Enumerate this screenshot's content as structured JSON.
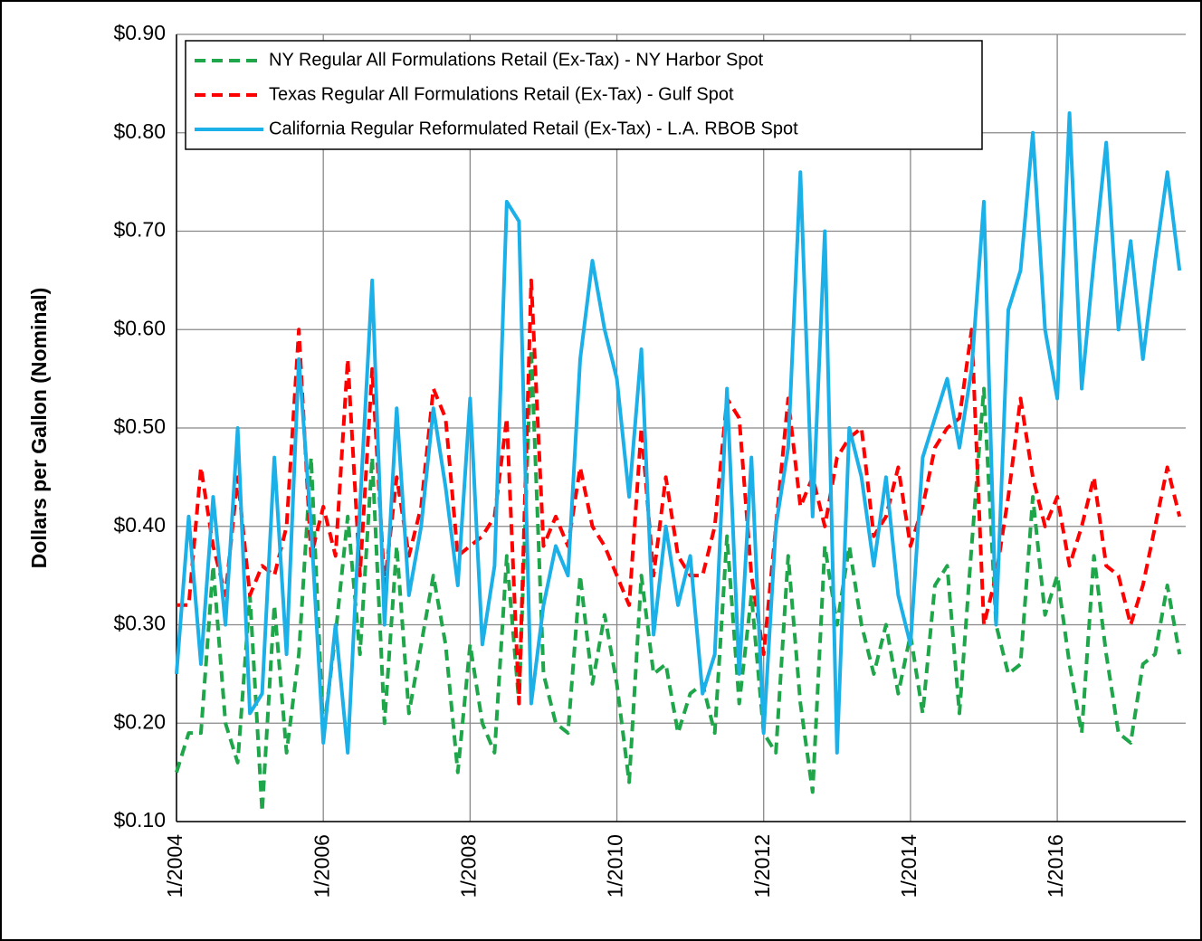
{
  "chart_data": {
    "type": "line",
    "y_label": "Dollars per Gallon (Nominal)",
    "x": [
      "1/2004",
      "3/2004",
      "5/2004",
      "7/2004",
      "9/2004",
      "11/2004",
      "1/2005",
      "3/2005",
      "5/2005",
      "7/2005",
      "9/2005",
      "11/2005",
      "1/2006",
      "3/2006",
      "5/2006",
      "7/2006",
      "9/2006",
      "11/2006",
      "1/2007",
      "3/2007",
      "5/2007",
      "7/2007",
      "9/2007",
      "11/2007",
      "1/2008",
      "3/2008",
      "5/2008",
      "7/2008",
      "9/2008",
      "11/2008",
      "1/2009",
      "3/2009",
      "5/2009",
      "7/2009",
      "9/2009",
      "11/2009",
      "1/2010",
      "3/2010",
      "5/2010",
      "7/2010",
      "9/2010",
      "11/2010",
      "1/2011",
      "3/2011",
      "5/2011",
      "7/2011",
      "9/2011",
      "11/2011",
      "1/2012",
      "3/2012",
      "5/2012",
      "7/2012",
      "9/2012",
      "11/2012",
      "1/2013",
      "3/2013",
      "5/2013",
      "7/2013",
      "9/2013",
      "11/2013",
      "1/2014",
      "3/2014",
      "5/2014",
      "7/2014",
      "9/2014",
      "11/2014",
      "1/2015",
      "3/2015",
      "5/2015",
      "7/2015",
      "9/2015",
      "11/2015",
      "1/2016",
      "3/2016",
      "5/2016",
      "7/2016",
      "9/2016",
      "11/2016",
      "1/2017",
      "3/2017",
      "5/2017",
      "7/2017",
      "9/2017"
    ],
    "series": [
      {
        "name": "NY Regular All Formulations Retail (Ex-Tax) - NY Harbor Spot",
        "color": "#1fa64a",
        "dashed": true,
        "values": [
          0.15,
          0.19,
          0.19,
          0.36,
          0.2,
          0.16,
          0.33,
          0.11,
          0.32,
          0.17,
          0.27,
          0.47,
          0.19,
          0.29,
          0.41,
          0.27,
          0.47,
          0.2,
          0.38,
          0.21,
          0.28,
          0.35,
          0.28,
          0.15,
          0.28,
          0.2,
          0.17,
          0.37,
          0.22,
          0.58,
          0.25,
          0.2,
          0.19,
          0.35,
          0.24,
          0.31,
          0.24,
          0.14,
          0.35,
          0.25,
          0.26,
          0.19,
          0.23,
          0.24,
          0.19,
          0.39,
          0.22,
          0.33,
          0.19,
          0.17,
          0.37,
          0.22,
          0.13,
          0.38,
          0.3,
          0.38,
          0.3,
          0.25,
          0.3,
          0.23,
          0.29,
          0.21,
          0.34,
          0.36,
          0.21,
          0.38,
          0.54,
          0.3,
          0.25,
          0.26,
          0.43,
          0.31,
          0.35,
          0.26,
          0.19,
          0.37,
          0.27,
          0.19,
          0.18,
          0.26,
          0.27,
          0.34,
          0.27
        ]
      },
      {
        "name": "Texas Regular All Formulations Retail (Ex-Tax) - Gulf Spot",
        "color": "#ff0000",
        "dashed": true,
        "values": [
          0.32,
          0.32,
          0.46,
          0.38,
          0.33,
          0.45,
          0.33,
          0.36,
          0.35,
          0.4,
          0.6,
          0.37,
          0.42,
          0.37,
          0.57,
          0.35,
          0.56,
          0.34,
          0.45,
          0.37,
          0.42,
          0.54,
          0.51,
          0.37,
          0.38,
          0.39,
          0.41,
          0.51,
          0.22,
          0.65,
          0.38,
          0.41,
          0.38,
          0.46,
          0.4,
          0.38,
          0.35,
          0.32,
          0.5,
          0.35,
          0.45,
          0.37,
          0.35,
          0.35,
          0.4,
          0.53,
          0.51,
          0.35,
          0.27,
          0.4,
          0.53,
          0.42,
          0.45,
          0.4,
          0.47,
          0.49,
          0.5,
          0.39,
          0.41,
          0.46,
          0.38,
          0.42,
          0.48,
          0.5,
          0.51,
          0.6,
          0.3,
          0.35,
          0.43,
          0.53,
          0.45,
          0.4,
          0.43,
          0.36,
          0.4,
          0.45,
          0.36,
          0.35,
          0.3,
          0.34,
          0.4,
          0.46,
          0.41
        ]
      },
      {
        "name": "California Regular Reformulated Retail (Ex-Tax) - L.A. RBOB Spot",
        "color": "#1cb0e8",
        "dashed": false,
        "values": [
          0.25,
          0.41,
          0.26,
          0.43,
          0.3,
          0.5,
          0.21,
          0.23,
          0.47,
          0.27,
          0.57,
          0.4,
          0.18,
          0.3,
          0.17,
          0.42,
          0.65,
          0.3,
          0.52,
          0.33,
          0.4,
          0.52,
          0.44,
          0.34,
          0.53,
          0.28,
          0.36,
          0.73,
          0.71,
          0.22,
          0.32,
          0.38,
          0.35,
          0.57,
          0.67,
          0.6,
          0.55,
          0.43,
          0.58,
          0.29,
          0.4,
          0.32,
          0.37,
          0.23,
          0.27,
          0.54,
          0.25,
          0.47,
          0.19,
          0.4,
          0.48,
          0.76,
          0.41,
          0.7,
          0.17,
          0.5,
          0.45,
          0.36,
          0.45,
          0.33,
          0.28,
          0.47,
          0.51,
          0.55,
          0.48,
          0.56,
          0.73,
          0.3,
          0.62,
          0.66,
          0.8,
          0.6,
          0.53,
          0.82,
          0.54,
          0.67,
          0.79,
          0.6,
          0.69,
          0.57,
          0.67,
          0.76,
          0.66
        ]
      }
    ],
    "xlim": [
      "1/2004",
      "10/2017"
    ],
    "xticks": [
      "1/2004",
      "1/2006",
      "1/2008",
      "1/2010",
      "1/2012",
      "1/2014",
      "1/2016"
    ],
    "ylim": [
      0.1,
      0.9
    ],
    "yticks": [
      {
        "value": 0.1,
        "label": "$0.10"
      },
      {
        "value": 0.2,
        "label": "$0.20"
      },
      {
        "value": 0.3,
        "label": "$0.30"
      },
      {
        "value": 0.4,
        "label": "$0.40"
      },
      {
        "value": 0.5,
        "label": "$0.50"
      },
      {
        "value": 0.6,
        "label": "$0.60"
      },
      {
        "value": 0.7,
        "label": "$0.70"
      },
      {
        "value": 0.8,
        "label": "$0.80"
      },
      {
        "value": 0.9,
        "label": "$0.90"
      }
    ],
    "grid": true,
    "legend": "upper left"
  }
}
